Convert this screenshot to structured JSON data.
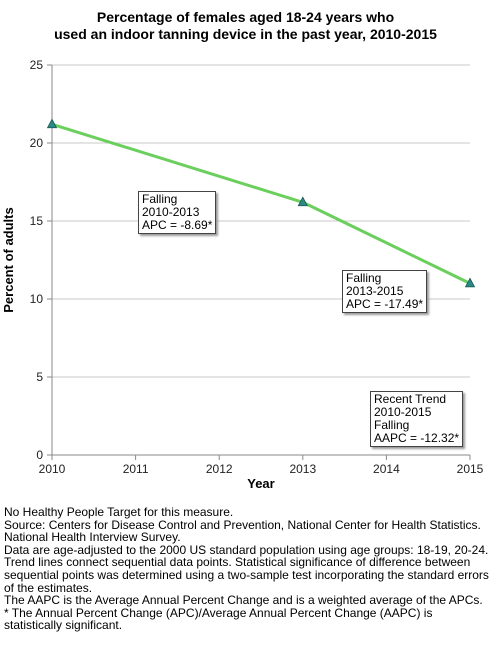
{
  "chart_data": {
    "type": "line",
    "title_lines": [
      "Percentage of females aged 18-24 years who",
      "used an indoor tanning device in the past year, 2010-2015"
    ],
    "xlabel": "Year",
    "ylabel": "Percent of adults",
    "xlim": [
      2010,
      2015
    ],
    "ylim": [
      0,
      25
    ],
    "xticks": [
      "2010",
      "2011",
      "2012",
      "2013",
      "2014",
      "2015"
    ],
    "yticks": [
      "0",
      "5",
      "10",
      "15",
      "20",
      "25"
    ],
    "grid": true,
    "series": [
      {
        "x": [
          2010,
          2013,
          2015
        ],
        "y": [
          21.2,
          16.2,
          11.0
        ],
        "color": "#6bcf5d",
        "marker_color": "#2a8a86"
      }
    ],
    "annotations": [
      {
        "lines": [
          "Falling",
          "2010-2013",
          "APC = -8.69*"
        ]
      },
      {
        "lines": [
          "Falling",
          "2013-2015",
          "APC = -17.49*"
        ]
      },
      {
        "lines": [
          "Recent Trend",
          "2010-2015",
          "Falling",
          "AAPC = -12.32*"
        ]
      }
    ]
  },
  "notes": [
    "No Healthy People Target for this measure.",
    "Source: Centers for Disease Control and Prevention, National Center for Health Statistics. National Health Interview Survey.",
    "Data are age-adjusted to the 2000 US standard population using age groups: 18-19, 20-24.",
    "Trend lines connect sequential data points. Statistical significance of difference between sequential points was determined using a two-sample test incorporating the standard errors of the estimates.",
    "The AAPC is the Average Annual Percent Change and is a weighted average of the APCs.",
    "* The Annual Percent Change (APC)/Average Annual Percent Change (AAPC) is statistically significant."
  ]
}
